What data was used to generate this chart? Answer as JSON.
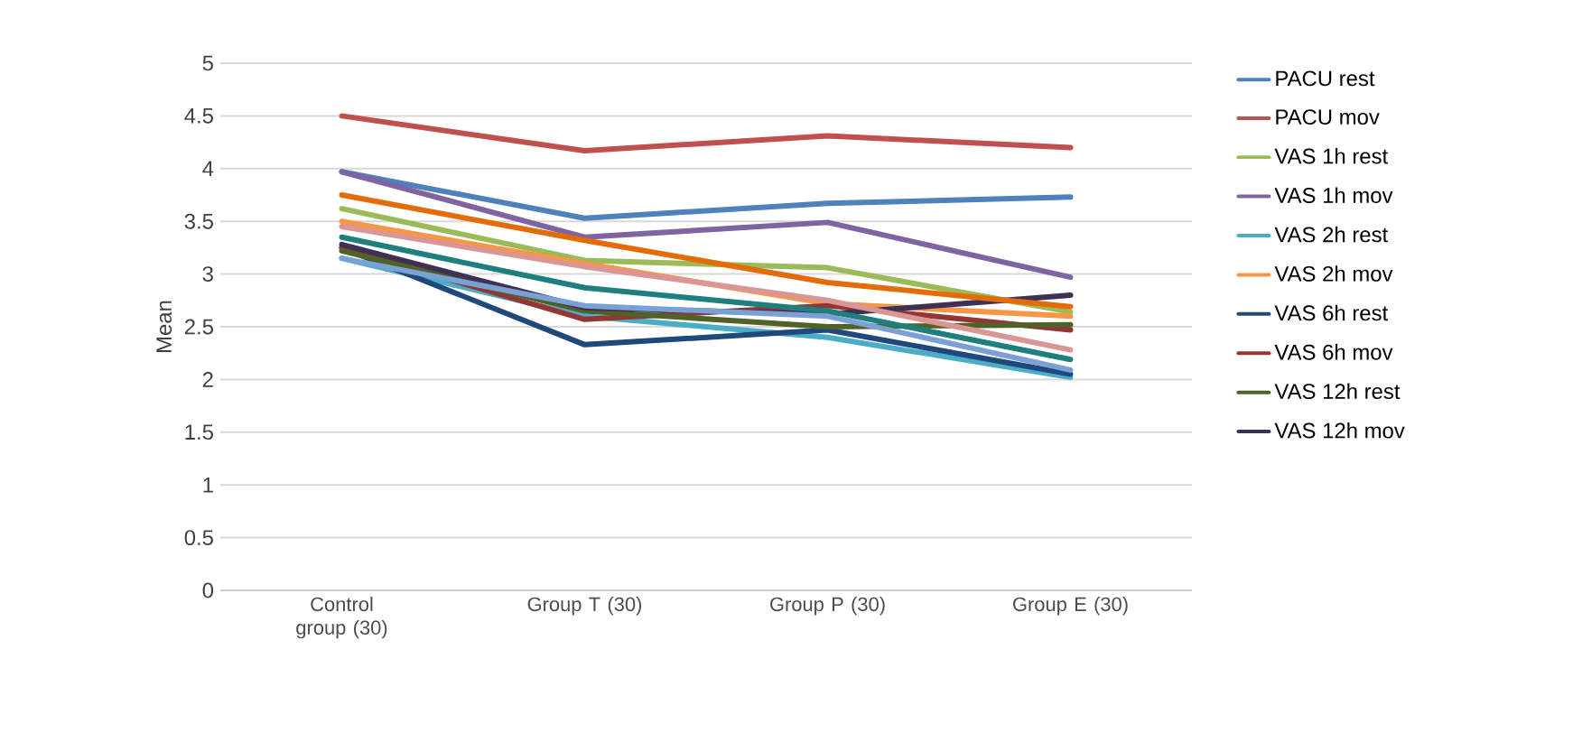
{
  "chart_data": {
    "type": "line",
    "ylabel": "Mean",
    "categories": [
      "Control group (30)",
      "Group T (30)",
      "Group P (30)",
      "Group E (30)"
    ],
    "ylim": [
      0,
      5
    ],
    "yticks": [
      0,
      0.5,
      1,
      1.5,
      2,
      2.5,
      3,
      3.5,
      4,
      4.5,
      5
    ],
    "grid": "y",
    "legend": "right",
    "marker": "none",
    "line_style": "solid",
    "series": [
      {
        "name": "PACU rest",
        "color": "#4f81bd",
        "values": [
          3.97,
          3.53,
          3.67,
          3.73
        ]
      },
      {
        "name": "PACU mov",
        "color": "#c0504d",
        "values": [
          4.5,
          4.17,
          4.31,
          4.2
        ]
      },
      {
        "name": "VAS 1h rest",
        "color": "#9bbb59",
        "values": [
          3.62,
          3.13,
          3.06,
          2.64
        ]
      },
      {
        "name": "VAS 1h mov",
        "color": "#8064a2",
        "values": [
          3.97,
          3.35,
          3.49,
          2.97
        ]
      },
      {
        "name": "VAS 2h rest",
        "color": "#4bacc6",
        "values": [
          3.15,
          2.6,
          2.4,
          2.02
        ]
      },
      {
        "name": "VAS 2h mov",
        "color": "#f79646",
        "values": [
          3.5,
          3.1,
          2.72,
          2.6
        ]
      },
      {
        "name": "VAS 6h rest",
        "color": "#1f497d",
        "values": [
          3.25,
          2.33,
          2.47,
          2.05
        ]
      },
      {
        "name": "VAS 6h mov",
        "color": "#943634",
        "values": [
          3.25,
          2.57,
          2.7,
          2.47
        ]
      },
      {
        "name": "VAS 12h rest",
        "color": "#4f6228",
        "values": [
          3.22,
          2.65,
          2.5,
          2.52
        ]
      },
      {
        "name": "VAS 12h mov",
        "color": "#3f3151",
        "values": [
          3.28,
          2.68,
          2.62,
          2.8
        ]
      },
      {
        "color": "#e36c09",
        "values": [
          3.75,
          3.32,
          2.92,
          2.69
        ]
      },
      {
        "color": "#1f7f7f",
        "values": [
          3.35,
          2.87,
          2.65,
          2.19
        ]
      },
      {
        "color": "#d99694",
        "values": [
          3.45,
          3.07,
          2.75,
          2.28
        ]
      },
      {
        "color": "#7ba0d6",
        "values": [
          3.15,
          2.7,
          2.6,
          2.09
        ]
      }
    ]
  }
}
